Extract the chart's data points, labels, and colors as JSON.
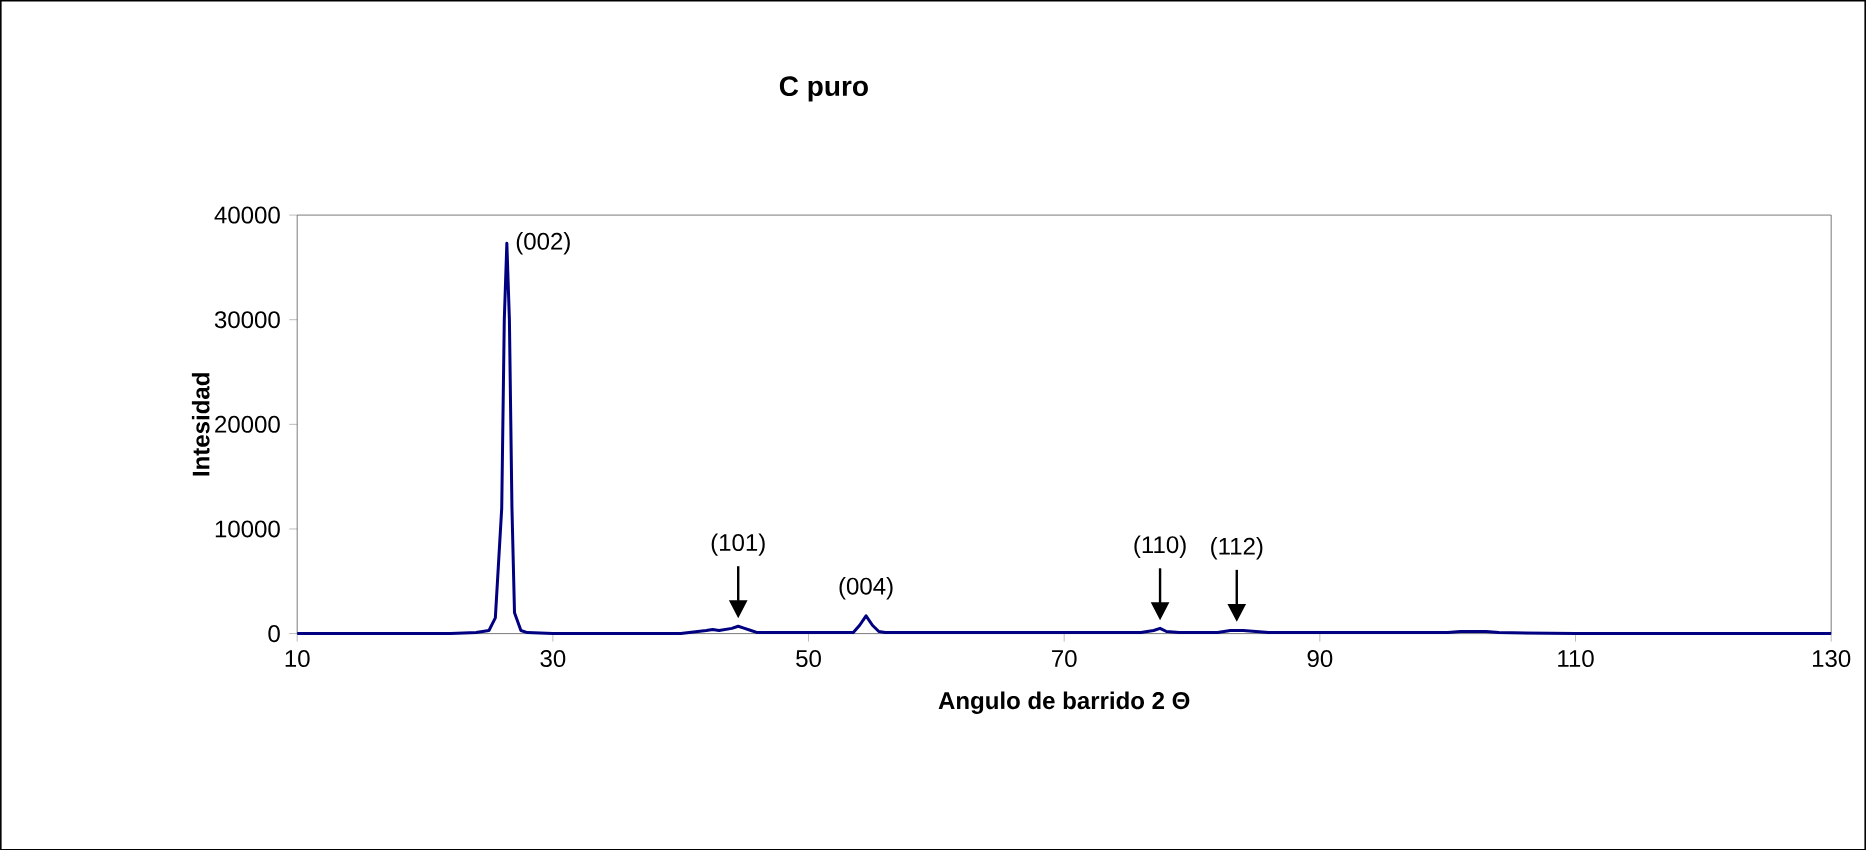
{
  "chart_data": {
    "type": "line",
    "title": "C puro",
    "xlabel": "Angulo de barrido 2 Θ",
    "ylabel": "Intesidad",
    "x": [
      10,
      20,
      22,
      24,
      25,
      25.5,
      26,
      26.2,
      26.4,
      26.6,
      26.8,
      27,
      27.5,
      28,
      30,
      35,
      40,
      42,
      42.5,
      43,
      43.5,
      44,
      44.5,
      45,
      45.5,
      46,
      50,
      53.5,
      54,
      54.5,
      55,
      55.5,
      56,
      60,
      65,
      70,
      76,
      77,
      77.5,
      78,
      79,
      82,
      83,
      83.5,
      84,
      86,
      90,
      94,
      95,
      100,
      101,
      102,
      103,
      104,
      110,
      130
    ],
    "series": [
      {
        "color": "#000080",
        "values": [
          0,
          0,
          0,
          100,
          300,
          1500,
          12000,
          30000,
          37300,
          30000,
          12000,
          2000,
          300,
          100,
          0,
          0,
          0,
          300,
          400,
          300,
          400,
          500,
          700,
          500,
          300,
          100,
          100,
          100,
          800,
          1700,
          800,
          200,
          100,
          100,
          100,
          100,
          100,
          300,
          500,
          200,
          100,
          100,
          300,
          300,
          300,
          100,
          100,
          100,
          100,
          100,
          200,
          200,
          200,
          100,
          0,
          0
        ]
      }
    ],
    "xlim": [
      10,
      130
    ],
    "xticks": [
      10,
      30,
      50,
      70,
      90,
      110,
      130
    ],
    "ylim": [
      0,
      40000
    ],
    "yticks": [
      0,
      10000,
      20000,
      30000,
      40000
    ],
    "grid": false,
    "marker": "none",
    "line_style": "solid",
    "annotations": [
      {
        "text": "(002)",
        "x": 26.4,
        "y": 37300
      },
      {
        "text": "(101)",
        "x": 44.5,
        "y": 700
      },
      {
        "text": "(004)",
        "x": 54.5,
        "y": 1700
      },
      {
        "text": "(110)",
        "x": 77.5,
        "y": 500
      },
      {
        "text": "(112)",
        "x": 83.5,
        "y": 350
      }
    ]
  }
}
